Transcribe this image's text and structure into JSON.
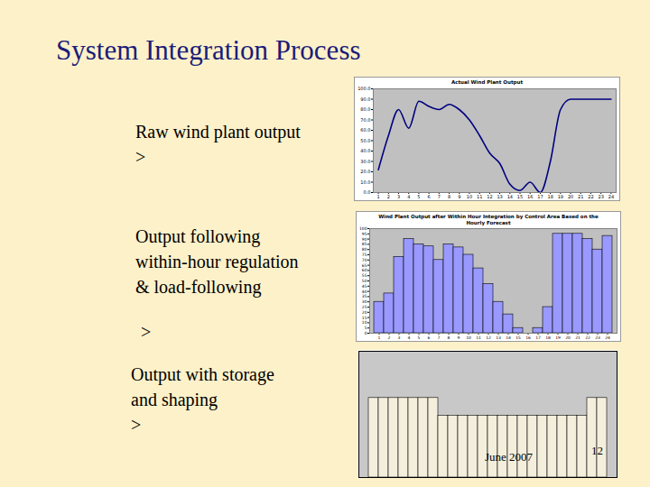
{
  "slide": {
    "title": "System Integration Process",
    "captions": [
      [
        "Raw wind plant output",
        ">"
      ],
      [
        "Output following",
        "within-hour regulation",
        "& load-following",
        ">"
      ],
      [
        "Output with storage",
        "and shaping",
        ">"
      ]
    ],
    "date": "June 2007",
    "page": 12
  },
  "chart_data": [
    {
      "type": "line",
      "title": "Actual Wind Plant Output",
      "x": [
        1,
        2,
        3,
        4,
        5,
        6,
        7,
        8,
        9,
        10,
        11,
        12,
        13,
        14,
        15,
        16,
        17,
        18,
        19,
        20,
        21,
        22,
        23,
        24
      ],
      "values": [
        22,
        55,
        80,
        62,
        88,
        83,
        80,
        85,
        80,
        70,
        55,
        38,
        28,
        8,
        2,
        10,
        0,
        30,
        80,
        90,
        90,
        90,
        90,
        90
      ],
      "color": "#000080",
      "xlim": [
        0.5,
        24.5
      ],
      "xticks": [
        1,
        2,
        3,
        4,
        5,
        6,
        7,
        8,
        9,
        10,
        11,
        12,
        13,
        14,
        15,
        16,
        17,
        18,
        19,
        20,
        21,
        22,
        23,
        24
      ],
      "ylim": [
        0,
        100
      ],
      "yticks": [
        {
          "value": 0,
          "label": "0.0"
        },
        {
          "value": 10,
          "label": "10.0"
        },
        {
          "value": 20,
          "label": "20.0"
        },
        {
          "value": 30,
          "label": "30.0"
        },
        {
          "value": 40,
          "label": "40.0"
        },
        {
          "value": 50,
          "label": "50.0"
        },
        {
          "value": 60,
          "label": "60.0"
        },
        {
          "value": 70,
          "label": "70.0"
        },
        {
          "value": 80,
          "label": "80.0"
        },
        {
          "value": 90,
          "label": "90.0"
        },
        {
          "value": 100,
          "label": "100.0"
        }
      ],
      "grid": false
    },
    {
      "type": "bar",
      "title": "Wind Plant Output after Within Hour Integration by Control Area Based on the Hourly Forecast",
      "categories": [
        "1",
        "2",
        "3",
        "4",
        "5",
        "6",
        "7",
        "8",
        "9",
        "10",
        "11",
        "12",
        "13",
        "14",
        "15",
        "16",
        "17",
        "18",
        "19",
        "20",
        "21",
        "22",
        "23",
        "24"
      ],
      "values": [
        30,
        38,
        73,
        90,
        85,
        83,
        70,
        85,
        82,
        75,
        62,
        47,
        30,
        18,
        5,
        0,
        5,
        25,
        95,
        95,
        95,
        90,
        80,
        93
      ],
      "color": "#9999ff",
      "ylim": [
        0,
        100
      ],
      "yticks": [
        0,
        5,
        10,
        15,
        20,
        25,
        30,
        35,
        40,
        45,
        50,
        55,
        60,
        65,
        70,
        75,
        80,
        85,
        90,
        95,
        100
      ],
      "grid": false
    },
    {
      "type": "bar",
      "categories": [
        null,
        null,
        null,
        null,
        null,
        null,
        null,
        null,
        null,
        null,
        null,
        null,
        null,
        null,
        null,
        null,
        null,
        null,
        null,
        null,
        null,
        null,
        null,
        null
      ],
      "values": [
        63,
        63,
        63,
        63,
        63,
        63,
        63,
        49,
        49,
        49,
        49,
        49,
        49,
        49,
        49,
        49,
        49,
        49,
        49,
        49,
        49,
        49,
        63,
        63
      ],
      "color": "#f4efdc",
      "ylim": [
        0,
        100
      ],
      "yticks": [],
      "tick_labels": false,
      "grid": false
    }
  ]
}
